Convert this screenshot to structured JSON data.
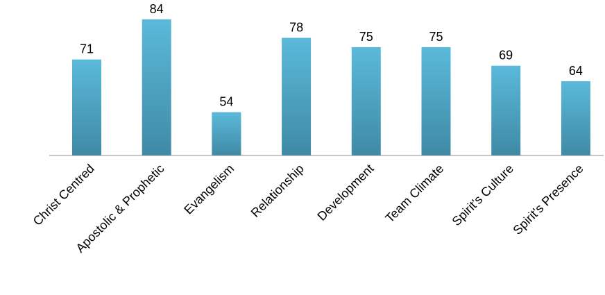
{
  "chart_data": {
    "type": "bar",
    "title": "",
    "xlabel": "",
    "ylabel": "",
    "categories": [
      "Christ Centred",
      "Apostolic & Prophetic",
      "Evangelism",
      "Relationship",
      "Development",
      "Team Climate",
      "Spirit's Culture",
      "Spirit's Presence"
    ],
    "values": [
      71,
      84,
      54,
      78,
      75,
      75,
      69,
      64
    ],
    "data_labels": [
      "71",
      "84",
      "54",
      "78",
      "75",
      "75",
      "69",
      "64"
    ],
    "ylim": [
      40,
      88
    ],
    "grid": false,
    "legend": "none",
    "colors": {
      "bar_top": "#5BB9DA",
      "bar_bottom": "#3F8AA5",
      "axis": "#8C8C8C"
    }
  }
}
